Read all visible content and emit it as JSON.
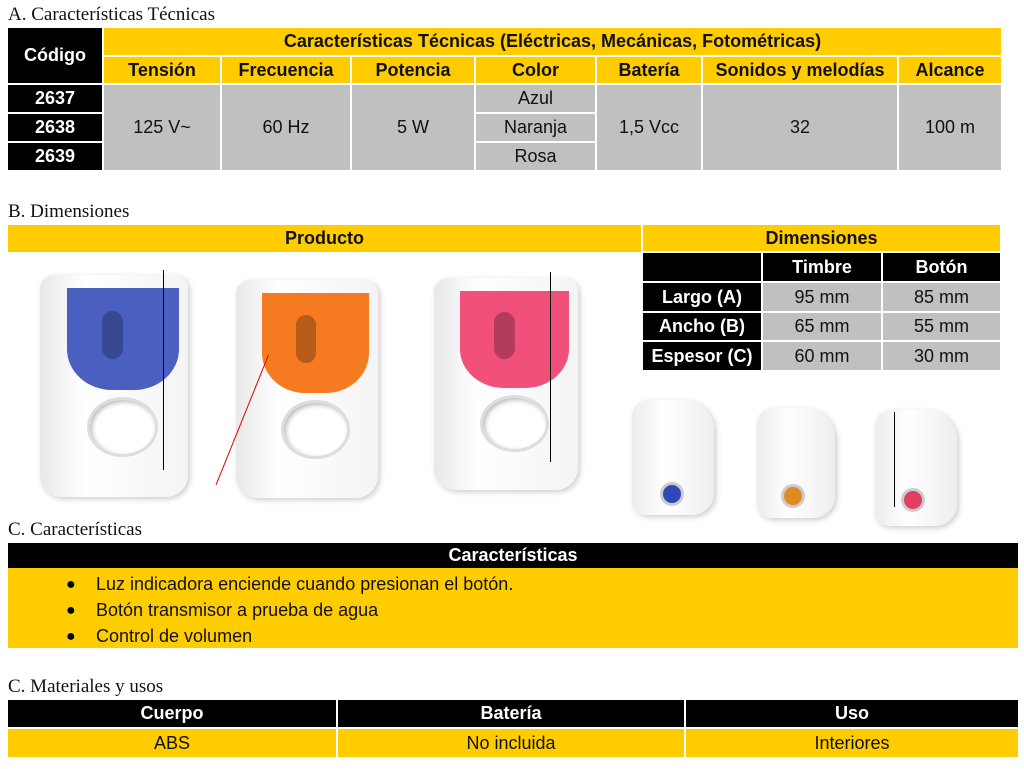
{
  "sectionA": {
    "title": "A. Características Técnicas",
    "codigo_label": "Código",
    "group_header": "Características Técnicas (Eléctricas, Mecánicas, Fotométricas)",
    "columns": [
      "Tensión",
      "Frecuencia",
      "Potencia",
      "Color",
      "Batería",
      "Sonidos y melodías",
      "Alcance"
    ],
    "codes": [
      "2637",
      "2638",
      "2639"
    ],
    "tension": "125 V~",
    "frecuencia": "60 Hz",
    "potencia": "5 W",
    "colors": [
      "Azul",
      "Naranja",
      "Rosa"
    ],
    "bateria": "1,5 Vcc",
    "sonidos": "32",
    "alcance": "100 m"
  },
  "sectionB": {
    "title": "B. Dimensiones",
    "producto_label": "Producto",
    "dimensiones_label": "Dimensiones",
    "columns": [
      "Timbre",
      "Botón"
    ],
    "rows": [
      {
        "label": "Largo (A)",
        "timbre": "95 mm",
        "boton": "85 mm"
      },
      {
        "label": "Ancho (B)",
        "timbre": "65 mm",
        "boton": "55 mm"
      },
      {
        "label": "Espesor (C)",
        "timbre": "60 mm",
        "boton": "30 mm"
      }
    ],
    "product_colors": [
      "#4a5fc0",
      "#f57a20",
      "#f0507a"
    ]
  },
  "sectionC": {
    "title": "C. Características",
    "header": "Características",
    "bullet": "●",
    "items": [
      "Luz indicadora enciende cuando presionan el botón.",
      "Botón transmisor a prueba de agua",
      "Control de volumen"
    ]
  },
  "sectionD": {
    "title": "C. Materiales y usos",
    "columns": [
      "Cuerpo",
      "Batería",
      "Uso"
    ],
    "values": [
      "ABS",
      "No incluida",
      "Interiores"
    ]
  },
  "colors": {
    "accent": "#ffcc00",
    "header_dark": "#000000",
    "cell_gray": "#c0c0c0"
  }
}
